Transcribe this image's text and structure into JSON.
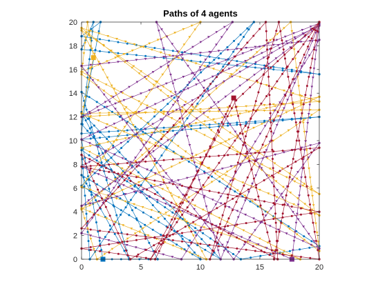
{
  "chart_data": {
    "type": "line",
    "title": "Paths of 4 agents",
    "xlabel": "",
    "ylabel": "",
    "xlim": [
      0,
      20
    ],
    "ylim": [
      0,
      20
    ],
    "x_ticks": [
      0,
      5,
      10,
      15,
      20
    ],
    "y_ticks": [
      0,
      2,
      4,
      6,
      8,
      10,
      12,
      14,
      16,
      18,
      20
    ],
    "x_tick_labels": [
      "0",
      "5",
      "10",
      "15",
      "20"
    ],
    "y_tick_labels": [
      "0",
      "2",
      "4",
      "6",
      "8",
      "10",
      "12",
      "14",
      "16",
      "18",
      "20"
    ],
    "grid": false,
    "legend": "none",
    "series": [
      {
        "color": "#0072BD",
        "marker": "circle",
        "points": [
          [
            1.8,
            0
          ],
          [
            0,
            10.1
          ],
          [
            20,
            12
          ],
          [
            0,
            10.6
          ],
          [
            1,
            20
          ],
          [
            0,
            17.7
          ],
          [
            20,
            15.6
          ],
          [
            0,
            18.8
          ],
          [
            1.6,
            20
          ],
          [
            0,
            11.4
          ],
          [
            10,
            0
          ],
          [
            0,
            6.2
          ],
          [
            14.5,
            20
          ],
          [
            0.7,
            0
          ],
          [
            0,
            9.2
          ],
          [
            13.4,
            0
          ],
          [
            20,
            1.1
          ],
          [
            0,
            14.1
          ],
          [
            4,
            0
          ],
          [
            0,
            7.1
          ],
          [
            11.7,
            0
          ],
          [
            0,
            12.4
          ],
          [
            6.4,
            0
          ],
          [
            1.8,
            0
          ]
        ],
        "start": [
          1.8,
          0
        ]
      },
      {
        "color": "#EDB120",
        "marker": "triangle-down",
        "points": [
          [
            1,
            17
          ],
          [
            0,
            12
          ],
          [
            20,
            13.3
          ],
          [
            0,
            19.5
          ],
          [
            20,
            3.7
          ],
          [
            0,
            12.3
          ],
          [
            20,
            12.6
          ],
          [
            1.3,
            0
          ],
          [
            0,
            4.3
          ],
          [
            10.5,
            0
          ],
          [
            0,
            19.3
          ],
          [
            20,
            5.5
          ],
          [
            0,
            15.8
          ],
          [
            10,
            20
          ],
          [
            0,
            6.1
          ],
          [
            18.4,
            0
          ],
          [
            0,
            9.4
          ],
          [
            20,
            13.7
          ],
          [
            0,
            4.2
          ],
          [
            17.6,
            20
          ],
          [
            20,
            0.7
          ],
          [
            0,
            15.6
          ],
          [
            0.5,
            20
          ],
          [
            1,
            17
          ]
        ],
        "start": [
          1,
          17
        ]
      },
      {
        "color": "#7E2F8E",
        "marker": "triangle-down",
        "points": [
          [
            17.7,
            0
          ],
          [
            0,
            7.8
          ],
          [
            20,
            19.8
          ],
          [
            11.7,
            0
          ],
          [
            6.3,
            20
          ],
          [
            20,
            0.9
          ],
          [
            0,
            10.1
          ],
          [
            20,
            19.7
          ],
          [
            0,
            4.5
          ],
          [
            20,
            9.8
          ],
          [
            12.8,
            0
          ],
          [
            0,
            16.3
          ],
          [
            20,
            18.5
          ],
          [
            8.4,
            0
          ],
          [
            0,
            2.2
          ],
          [
            12.7,
            20
          ],
          [
            0,
            12
          ],
          [
            20,
            19.9
          ],
          [
            17.7,
            0
          ]
        ],
        "start": [
          17.7,
          0
        ]
      },
      {
        "color": "#A2142F",
        "marker": "circle",
        "points": [
          [
            12.8,
            13.6
          ],
          [
            6.2,
            0
          ],
          [
            0,
            0.9
          ],
          [
            20,
            4
          ],
          [
            0,
            7.8
          ],
          [
            20,
            9.4
          ],
          [
            4.1,
            0
          ],
          [
            0,
            8.8
          ],
          [
            16.5,
            0
          ],
          [
            15.5,
            20
          ],
          [
            0,
            2.6
          ],
          [
            20,
            0
          ],
          [
            16.6,
            20
          ],
          [
            10.8,
            0
          ],
          [
            20,
            20
          ],
          [
            5.8,
            0
          ],
          [
            13,
            13.4
          ],
          [
            20,
            20
          ],
          [
            16.2,
            0
          ],
          [
            12.8,
            13.6
          ]
        ],
        "start": [
          12.8,
          13.6
        ]
      }
    ]
  }
}
